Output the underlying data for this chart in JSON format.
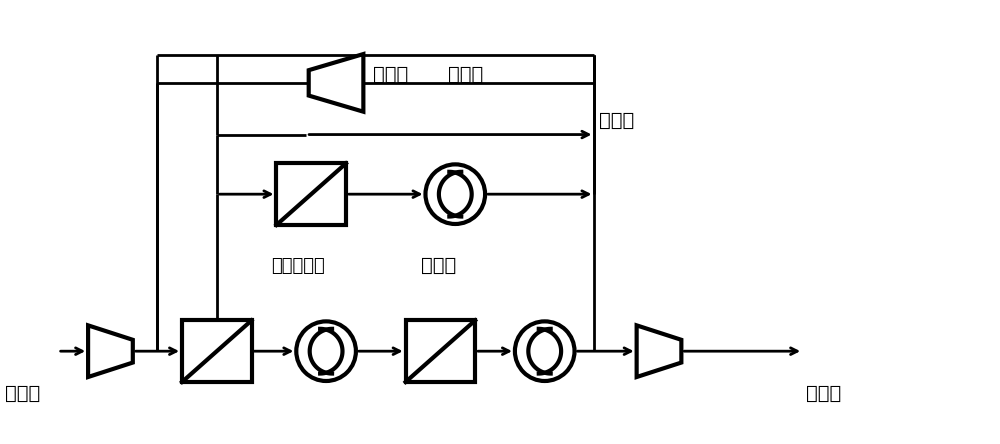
{
  "background": "#ffffff",
  "line_color": "#000000",
  "line_width": 2.0,
  "font_size": 14,
  "labels": {
    "raw_gas": "原料气",
    "product_gas": "产品气",
    "compressor": "压缩机",
    "recycle_gas": "循环气",
    "exhaust_gas": "排放气",
    "stage2_membrane": "二级膜分离",
    "vacuum_pump": "真空泵"
  },
  "layout": {
    "figsize": [
      10.0,
      4.44
    ],
    "dpi": 100,
    "xlim": [
      0,
      10
    ],
    "ylim": [
      0,
      4.44
    ]
  }
}
